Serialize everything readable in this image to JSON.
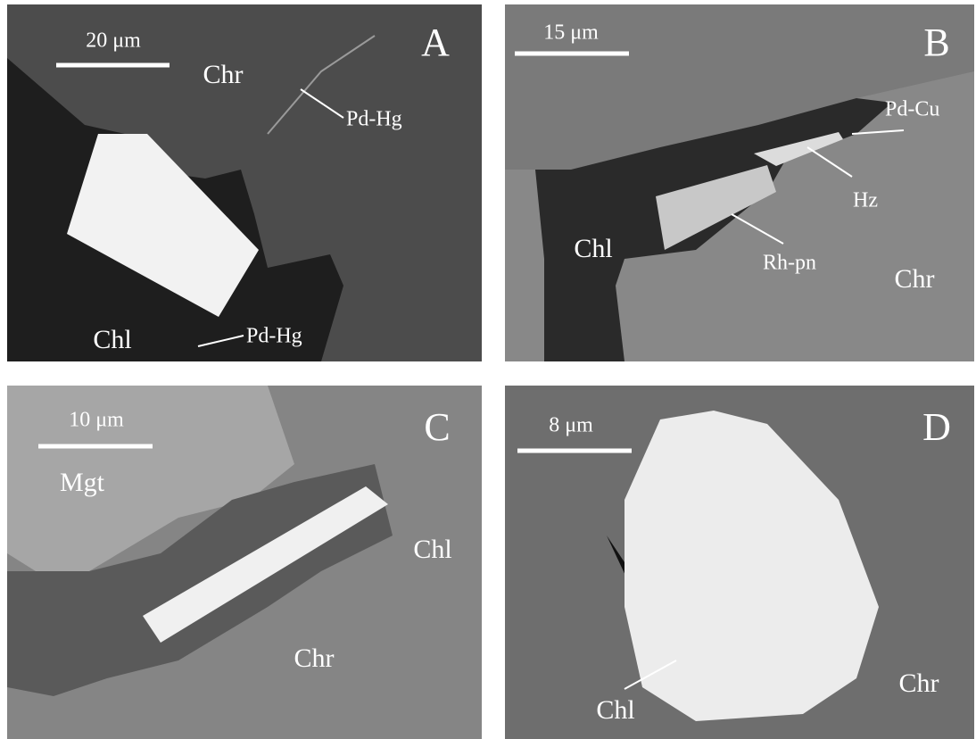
{
  "panels": [
    {
      "letter": "A",
      "scale_bar": "20 μm",
      "labels": [
        "Chr",
        "Pd-Hg",
        "Chl",
        "Pd-Hg"
      ]
    },
    {
      "letter": "B",
      "scale_bar": "15 μm",
      "labels": [
        "Pd-Cu",
        "Hz",
        "Chl",
        "Rh-pn",
        "Chr"
      ]
    },
    {
      "letter": "C",
      "scale_bar": "10 μm",
      "labels": [
        "Mgt",
        "Chl",
        "Chr"
      ]
    },
    {
      "letter": "D",
      "scale_bar": "8 μm",
      "labels": [
        "Chl",
        "Chr"
      ]
    }
  ]
}
